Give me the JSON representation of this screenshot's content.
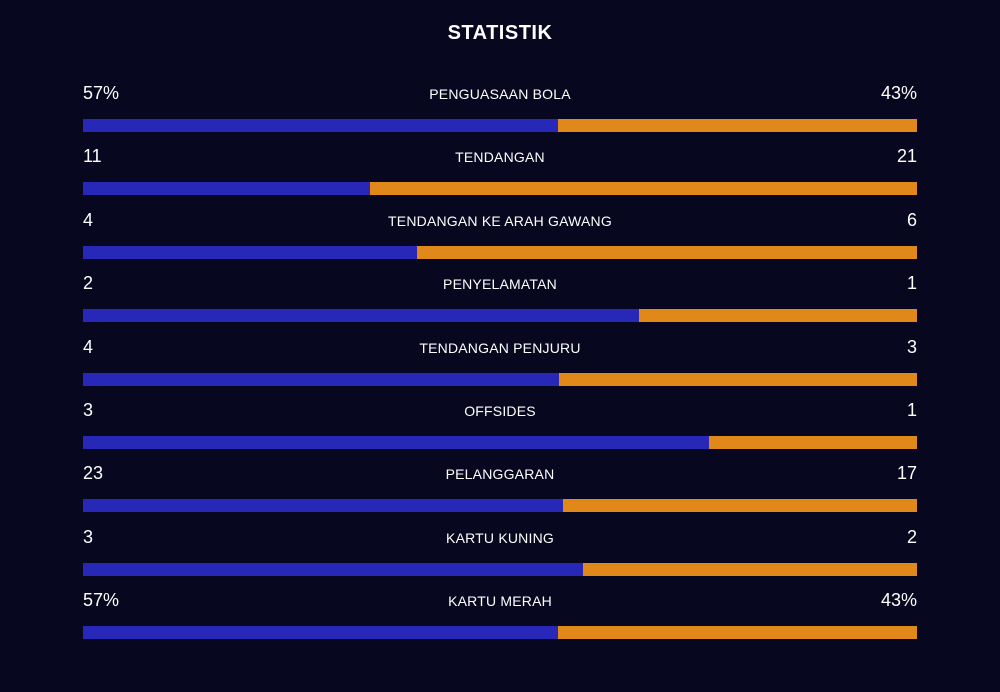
{
  "title": "STATISTIK",
  "colors": {
    "background": "#07071f",
    "home_bar": "#2828b8",
    "away_bar": "#e0891a"
  },
  "stats": [
    {
      "label": "PENGUASAAN BOLA",
      "home": "57%",
      "away": "43%",
      "home_share": 0.57
    },
    {
      "label": "TENDANGAN",
      "home": "11",
      "away": "21",
      "home_share": 0.344
    },
    {
      "label": "TENDANGAN KE ARAH GAWANG",
      "home": "4",
      "away": "6",
      "home_share": 0.4
    },
    {
      "label": "PENYELAMATAN",
      "home": "2",
      "away": "1",
      "home_share": 0.667
    },
    {
      "label": "TENDANGAN PENJURU",
      "home": "4",
      "away": "3",
      "home_share": 0.571
    },
    {
      "label": "OFFSIDES",
      "home": "3",
      "away": "1",
      "home_share": 0.75
    },
    {
      "label": "PELANGGARAN",
      "home": "23",
      "away": "17",
      "home_share": 0.575
    },
    {
      "label": "KARTU KUNING",
      "home": "3",
      "away": "2",
      "home_share": 0.6
    },
    {
      "label": "KARTU MERAH",
      "home": "57%",
      "away": "43%",
      "home_share": 0.57
    }
  ]
}
